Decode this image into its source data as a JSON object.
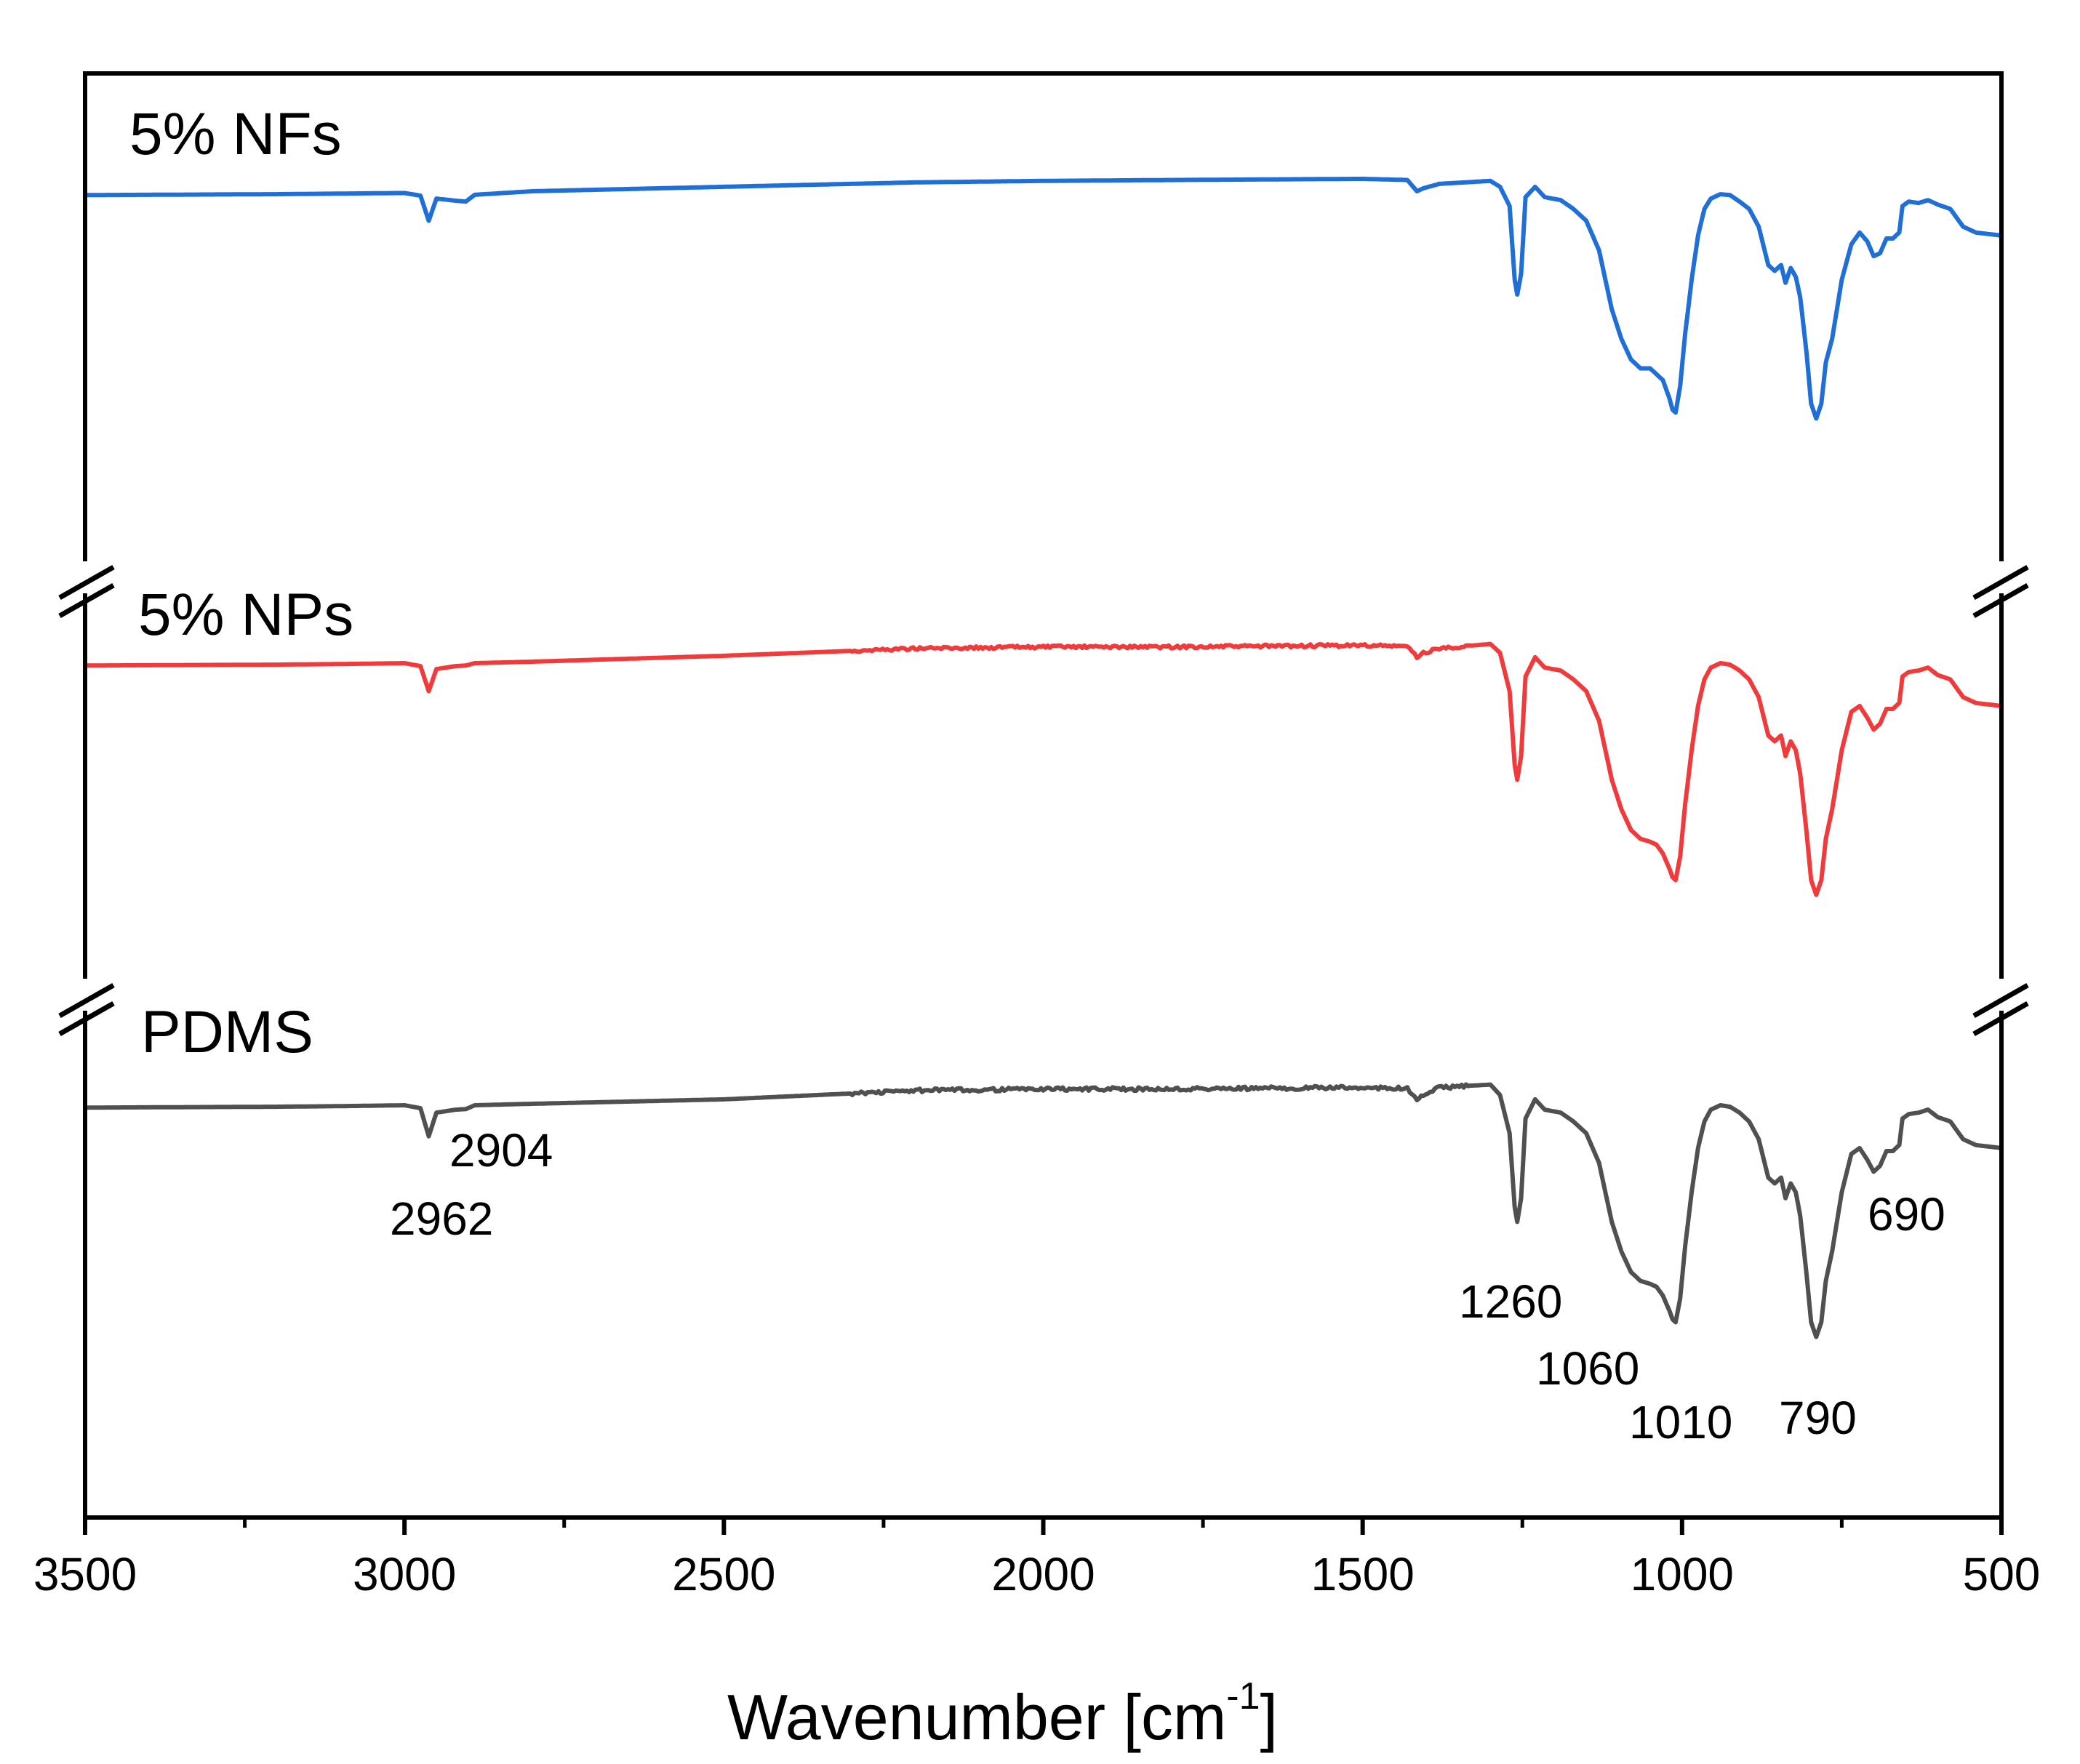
{
  "chart_data": {
    "type": "line",
    "title": "",
    "xlabel": "Wavenumber [cm",
    "xlabel_sup": "-1",
    "xlabel_end": "]",
    "ylabel": "",
    "xlim": [
      3500,
      500
    ],
    "x_ticks": [
      3500,
      3000,
      2500,
      2000,
      1500,
      1000,
      500
    ],
    "x_tick_labels": [
      "3500",
      "3000",
      "2500",
      "2000",
      "1500",
      "1000",
      "500"
    ],
    "y_ticks": false,
    "grid": false,
    "axis_breaks": true,
    "series": [
      {
        "name": "5% NFs",
        "color": "#1f6fd6",
        "noise": 0.0,
        "points": [
          [
            3500,
            1.3
          ],
          [
            3200,
            1.0
          ],
          [
            3100,
            0.8
          ],
          [
            3000,
            0.6
          ],
          [
            2975,
            1.5
          ],
          [
            2962,
            10.0
          ],
          [
            2950,
            2.5
          ],
          [
            2920,
            3.2
          ],
          [
            2904,
            3.5
          ],
          [
            2890,
            1.2
          ],
          [
            2800,
            0.0
          ],
          [
            2500,
            -1.5
          ],
          [
            2200,
            -3.0
          ],
          [
            2000,
            -3.5
          ],
          [
            1800,
            -3.8
          ],
          [
            1500,
            -4.2
          ],
          [
            1430,
            -3.8
          ],
          [
            1415,
            0.0
          ],
          [
            1405,
            -1.0
          ],
          [
            1380,
            -2.5
          ],
          [
            1300,
            -3.5
          ],
          [
            1285,
            -1.5
          ],
          [
            1270,
            5.0
          ],
          [
            1262,
            30.0
          ],
          [
            1258,
            35.0
          ],
          [
            1252,
            28.0
          ],
          [
            1245,
            2.0
          ],
          [
            1230,
            -1.5
          ],
          [
            1215,
            2.0
          ],
          [
            1190,
            3.0
          ],
          [
            1170,
            6.0
          ],
          [
            1150,
            10.0
          ],
          [
            1130,
            20.0
          ],
          [
            1110,
            40.0
          ],
          [
            1095,
            50.0
          ],
          [
            1080,
            57.0
          ],
          [
            1065,
            60.0
          ],
          [
            1050,
            60.0
          ],
          [
            1040,
            62.0
          ],
          [
            1030,
            64.0
          ],
          [
            1020,
            70.0
          ],
          [
            1015,
            74.0
          ],
          [
            1010,
            75.0
          ],
          [
            1003,
            66.0
          ],
          [
            995,
            48.0
          ],
          [
            985,
            30.0
          ],
          [
            975,
            15.0
          ],
          [
            965,
            6.0
          ],
          [
            955,
            2.5
          ],
          [
            940,
            1.0
          ],
          [
            925,
            1.3
          ],
          [
            910,
            3.5
          ],
          [
            895,
            6.0
          ],
          [
            880,
            12.0
          ],
          [
            865,
            25.0
          ],
          [
            855,
            27.0
          ],
          [
            845,
            25.0
          ],
          [
            838,
            31.0
          ],
          [
            830,
            26.0
          ],
          [
            822,
            29.0
          ],
          [
            815,
            36.0
          ],
          [
            805,
            55.0
          ],
          [
            798,
            72.0
          ],
          [
            790,
            77.0
          ],
          [
            782,
            72.0
          ],
          [
            775,
            58.0
          ],
          [
            765,
            50.0
          ],
          [
            750,
            30.0
          ],
          [
            735,
            18.0
          ],
          [
            722,
            14.0
          ],
          [
            710,
            17.0
          ],
          [
            700,
            22.0
          ],
          [
            690,
            21.0
          ],
          [
            680,
            16.0
          ],
          [
            670,
            16.0
          ],
          [
            660,
            14.0
          ],
          [
            655,
            5.0
          ],
          [
            645,
            3.5
          ],
          [
            630,
            4.0
          ],
          [
            615,
            3.0
          ],
          [
            600,
            4.5
          ],
          [
            580,
            6.0
          ],
          [
            560,
            12.0
          ],
          [
            540,
            14.0
          ],
          [
            520,
            14.5
          ],
          [
            500,
            15.0
          ]
        ]
      },
      {
        "name": "5% NPs",
        "color": "#ef3b3b",
        "noise": 0.5,
        "points": [
          [
            3500,
            1.3
          ],
          [
            3200,
            1.0
          ],
          [
            3100,
            0.8
          ],
          [
            3000,
            0.5
          ],
          [
            2975,
            1.5
          ],
          [
            2962,
            10.0
          ],
          [
            2950,
            2.5
          ],
          [
            2920,
            1.5
          ],
          [
            2904,
            1.3
          ],
          [
            2890,
            0.5
          ],
          [
            2800,
            0.0
          ],
          [
            2500,
            -2.0
          ],
          [
            2200,
            -4.5
          ],
          [
            2000,
            -5.0
          ],
          [
            1800,
            -5.0
          ],
          [
            1500,
            -5.5
          ],
          [
            1430,
            -5.2
          ],
          [
            1415,
            -1.5
          ],
          [
            1405,
            -3.0
          ],
          [
            1380,
            -4.5
          ],
          [
            1300,
            -6.0
          ],
          [
            1285,
            -3.0
          ],
          [
            1270,
            10.0
          ],
          [
            1262,
            35.0
          ],
          [
            1258,
            40.0
          ],
          [
            1252,
            32.0
          ],
          [
            1245,
            5.0
          ],
          [
            1230,
            -1.5
          ],
          [
            1215,
            2.0
          ],
          [
            1190,
            3.0
          ],
          [
            1170,
            6.0
          ],
          [
            1150,
            10.0
          ],
          [
            1130,
            20.0
          ],
          [
            1110,
            40.0
          ],
          [
            1095,
            50.0
          ],
          [
            1080,
            57.0
          ],
          [
            1065,
            60.0
          ],
          [
            1050,
            61.0
          ],
          [
            1040,
            62.0
          ],
          [
            1030,
            65.0
          ],
          [
            1020,
            70.0
          ],
          [
            1015,
            73.0
          ],
          [
            1010,
            74.0
          ],
          [
            1003,
            66.0
          ],
          [
            995,
            48.0
          ],
          [
            985,
            30.0
          ],
          [
            975,
            15.0
          ],
          [
            965,
            6.0
          ],
          [
            955,
            2.0
          ],
          [
            940,
            0.5
          ],
          [
            925,
            1.0
          ],
          [
            910,
            3.0
          ],
          [
            895,
            6.0
          ],
          [
            880,
            12.0
          ],
          [
            865,
            25.0
          ],
          [
            855,
            27.0
          ],
          [
            845,
            25.0
          ],
          [
            838,
            32.0
          ],
          [
            830,
            27.0
          ],
          [
            822,
            30.0
          ],
          [
            815,
            38.0
          ],
          [
            805,
            58.0
          ],
          [
            798,
            74.0
          ],
          [
            790,
            79.0
          ],
          [
            782,
            74.0
          ],
          [
            775,
            60.0
          ],
          [
            765,
            50.0
          ],
          [
            750,
            30.0
          ],
          [
            735,
            17.0
          ],
          [
            722,
            15.0
          ],
          [
            710,
            19.0
          ],
          [
            700,
            23.0
          ],
          [
            690,
            21.0
          ],
          [
            680,
            16.0
          ],
          [
            670,
            16.0
          ],
          [
            660,
            14.0
          ],
          [
            655,
            5.0
          ],
          [
            645,
            3.5
          ],
          [
            630,
            3.0
          ],
          [
            615,
            2.0
          ],
          [
            600,
            4.5
          ],
          [
            580,
            6.0
          ],
          [
            560,
            12.0
          ],
          [
            540,
            14.0
          ],
          [
            520,
            14.5
          ],
          [
            500,
            15.0
          ]
        ]
      },
      {
        "name": "PDMS",
        "color": "#505050",
        "noise": 0.6,
        "points": [
          [
            3500,
            1.3
          ],
          [
            3200,
            1.0
          ],
          [
            3100,
            0.8
          ],
          [
            3000,
            0.5
          ],
          [
            2975,
            1.5
          ],
          [
            2962,
            11.0
          ],
          [
            2950,
            3.0
          ],
          [
            2920,
            2.0
          ],
          [
            2904,
            1.8
          ],
          [
            2890,
            0.5
          ],
          [
            2800,
            0.0
          ],
          [
            2500,
            -1.5
          ],
          [
            2200,
            -4.5
          ],
          [
            2000,
            -5.0
          ],
          [
            1800,
            -5.0
          ],
          [
            1500,
            -5.5
          ],
          [
            1430,
            -5.2
          ],
          [
            1415,
            -1.0
          ],
          [
            1405,
            -3.0
          ],
          [
            1380,
            -5.5
          ],
          [
            1300,
            -6.5
          ],
          [
            1285,
            -3.0
          ],
          [
            1270,
            10.0
          ],
          [
            1262,
            35.0
          ],
          [
            1258,
            40.0
          ],
          [
            1252,
            32.0
          ],
          [
            1245,
            5.0
          ],
          [
            1230,
            -1.5
          ],
          [
            1215,
            2.0
          ],
          [
            1190,
            3.0
          ],
          [
            1170,
            6.0
          ],
          [
            1150,
            10.0
          ],
          [
            1130,
            20.0
          ],
          [
            1110,
            40.0
          ],
          [
            1095,
            50.0
          ],
          [
            1080,
            57.0
          ],
          [
            1065,
            60.0
          ],
          [
            1050,
            61.0
          ],
          [
            1040,
            62.0
          ],
          [
            1030,
            65.0
          ],
          [
            1020,
            70.0
          ],
          [
            1015,
            73.0
          ],
          [
            1010,
            74.0
          ],
          [
            1003,
            66.0
          ],
          [
            995,
            48.0
          ],
          [
            985,
            30.0
          ],
          [
            975,
            15.0
          ],
          [
            965,
            6.0
          ],
          [
            955,
            2.0
          ],
          [
            940,
            0.5
          ],
          [
            925,
            1.0
          ],
          [
            910,
            3.0
          ],
          [
            895,
            6.0
          ],
          [
            880,
            12.0
          ],
          [
            865,
            25.0
          ],
          [
            855,
            27.0
          ],
          [
            845,
            25.0
          ],
          [
            838,
            32.0
          ],
          [
            830,
            27.0
          ],
          [
            822,
            30.0
          ],
          [
            815,
            38.0
          ],
          [
            805,
            58.0
          ],
          [
            798,
            74.0
          ],
          [
            790,
            79.0
          ],
          [
            782,
            74.0
          ],
          [
            775,
            60.0
          ],
          [
            765,
            50.0
          ],
          [
            750,
            30.0
          ],
          [
            735,
            17.0
          ],
          [
            722,
            15.0
          ],
          [
            710,
            19.0
          ],
          [
            700,
            23.0
          ],
          [
            690,
            21.0
          ],
          [
            680,
            16.0
          ],
          [
            670,
            16.0
          ],
          [
            660,
            14.0
          ],
          [
            655,
            5.0
          ],
          [
            645,
            3.5
          ],
          [
            630,
            3.0
          ],
          [
            615,
            2.0
          ],
          [
            600,
            4.5
          ],
          [
            580,
            6.0
          ],
          [
            560,
            12.0
          ],
          [
            540,
            14.0
          ],
          [
            520,
            14.5
          ],
          [
            500,
            15.0
          ]
        ]
      }
    ],
    "peak_labels": [
      {
        "text": "2904",
        "wavenumber": 2904
      },
      {
        "text": "2962",
        "wavenumber": 2962
      },
      {
        "text": "1260",
        "wavenumber": 1260
      },
      {
        "text": "1060",
        "wavenumber": 1060
      },
      {
        "text": "1010",
        "wavenumber": 1010
      },
      {
        "text": "790",
        "wavenumber": 790
      },
      {
        "text": "690",
        "wavenumber": 690
      }
    ]
  }
}
